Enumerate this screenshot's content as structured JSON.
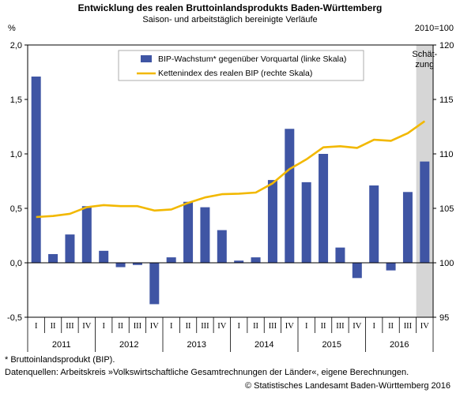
{
  "header": {
    "title": "Entwicklung des realen Bruttoinlandsprodukts Baden-Württemberg",
    "subtitle": "Saison- und arbeitstäglich bereinigte Verläufe",
    "left_unit": "%",
    "right_unit": "2010=100"
  },
  "chart_data": {
    "type": "bar+line",
    "title": "Entwicklung des realen Bruttoinlandsprodukts Baden-Württemberg",
    "subtitle": "Saison- und arbeitstäglich bereinigte Verläufe",
    "left_axis": {
      "label": "%",
      "ylim": [
        -0.5,
        2.0
      ],
      "ticks": [
        -0.5,
        0.0,
        0.5,
        1.0,
        1.5,
        2.0
      ],
      "tick_labels": [
        "-0,5",
        "0,0",
        "0,5",
        "1,0",
        "1,5",
        "2,0"
      ]
    },
    "right_axis": {
      "label": "2010=100",
      "ylim": [
        95,
        120
      ],
      "ticks": [
        95,
        100,
        105,
        110,
        115,
        120
      ],
      "tick_labels": [
        "95",
        "100",
        "105",
        "110",
        "115",
        "120"
      ]
    },
    "quarters": [
      "I",
      "II",
      "III",
      "IV",
      "I",
      "II",
      "III",
      "IV",
      "I",
      "II",
      "III",
      "IV",
      "I",
      "II",
      "III",
      "IV",
      "I",
      "II",
      "III",
      "IV",
      "I",
      "II",
      "III",
      "IV"
    ],
    "years": [
      "2011",
      "2012",
      "2013",
      "2014",
      "2015",
      "2016"
    ],
    "estimate_label": [
      "Schät-",
      "zung"
    ],
    "estimate_from_index": 23,
    "series": [
      {
        "name": "BIP-Wachstum* gegenüber Vorquartal (linke Skala)",
        "kind": "bar",
        "axis": "left",
        "color": "#3f55a4",
        "values": [
          1.71,
          0.08,
          0.26,
          0.52,
          0.11,
          -0.04,
          -0.02,
          -0.38,
          0.05,
          0.56,
          0.51,
          0.3,
          0.02,
          0.05,
          0.76,
          1.23,
          0.74,
          1.0,
          0.14,
          -0.14,
          0.71,
          -0.07,
          0.65,
          0.93
        ]
      },
      {
        "name": "Kettenindex des realen BIP (rechte Skala)",
        "kind": "line",
        "axis": "right",
        "color": "#f2b800",
        "values": [
          104.2,
          104.3,
          104.5,
          105.1,
          105.3,
          105.2,
          105.2,
          104.8,
          104.9,
          105.5,
          106.0,
          106.3,
          106.35,
          106.45,
          107.3,
          108.6,
          109.5,
          110.6,
          110.7,
          110.55,
          111.3,
          111.2,
          111.9,
          113.0
        ]
      }
    ],
    "legend_position": "top-center",
    "grid": false
  },
  "footnotes": {
    "note": "* Bruttoinlandsprodukt (BIP).",
    "source": "Datenquellen: Arbeitskreis »Volkswirtschaftliche Gesamtrechnungen der Länder«, eigene Berechnungen.",
    "copyright": "© Statistisches Landesamt Baden-Württemberg 2016"
  }
}
